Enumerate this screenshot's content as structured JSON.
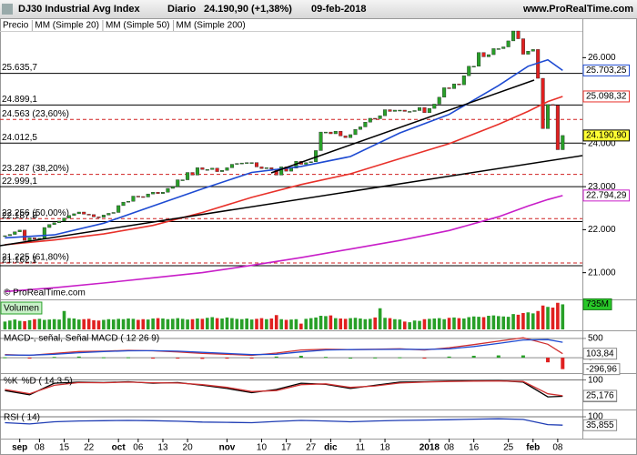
{
  "header": {
    "title": "DJ30 Industrial Avg Index",
    "period": "Diario",
    "last": "24.190,90 (+1,38%)",
    "date": "09-feb-2018",
    "site": "www.ProRealTime.com"
  },
  "chart_data": [
    {
      "type": "candlestick",
      "name": "Precio",
      "watermark": "© ProRealTime.com",
      "up_color": "#28a028",
      "down_color": "#e02020",
      "close": [
        21860,
        21890,
        21950,
        21990,
        21750,
        21810,
        21780,
        21800,
        22050,
        22120,
        22160,
        22200,
        22270,
        22330,
        22370,
        22410,
        22360,
        22350,
        22300,
        22290,
        22340,
        22380,
        22400,
        22560,
        22640,
        22660,
        22780,
        22770,
        22760,
        22830,
        22870,
        22840,
        22870,
        22960,
        23000,
        23160,
        23160,
        23330,
        23270,
        23440,
        23400,
        23400,
        23430,
        23350,
        23380,
        23440,
        23520,
        23540,
        23550,
        23560,
        23560,
        23460,
        23420,
        23440,
        23410,
        23270,
        23460,
        23360,
        23430,
        23590,
        23520,
        23560,
        23580,
        23840,
        24270,
        24270,
        24230,
        24290,
        24180,
        24140,
        24210,
        24330,
        24390,
        24500,
        24590,
        24580,
        24650,
        24790,
        24750,
        24780,
        24780,
        24750,
        24750,
        24770,
        24840,
        24720,
        24820,
        24920,
        25080,
        25300,
        25280,
        25390,
        25370,
        25580,
        25800,
        25800,
        26120,
        26020,
        26070,
        26210,
        26210,
        26250,
        26390,
        26620,
        26440,
        26080,
        26150,
        26190,
        25520,
        24350,
        24910,
        24890,
        23860,
        24190
      ],
      "close_last_label": "24.190,90",
      "xlim": [
        -1,
        117
      ],
      "xticks": [
        {
          "value": 3,
          "label": "sep"
        },
        {
          "value": 7,
          "label": "08"
        },
        {
          "value": 12,
          "label": "15"
        },
        {
          "value": 17,
          "label": "22"
        },
        {
          "value": 23,
          "label": "oct"
        },
        {
          "value": 27,
          "label": "06"
        },
        {
          "value": 32,
          "label": "13"
        },
        {
          "value": 37,
          "label": "20"
        },
        {
          "value": 45,
          "label": "nov"
        },
        {
          "value": 52,
          "label": "10"
        },
        {
          "value": 57,
          "label": "17"
        },
        {
          "value": 62,
          "label": "27"
        },
        {
          "value": 66,
          "label": "dic"
        },
        {
          "value": 72,
          "label": "11"
        },
        {
          "value": 77,
          "label": "18"
        },
        {
          "value": 86,
          "label": "2018"
        },
        {
          "value": 90,
          "label": "08"
        },
        {
          "value": 95,
          "label": "16"
        },
        {
          "value": 102,
          "label": "25"
        },
        {
          "value": 107,
          "label": "feb"
        },
        {
          "value": 112,
          "label": "08"
        }
      ],
      "ylim": [
        20400,
        26600
      ],
      "yticks": [
        {
          "value": 21000,
          "label": "21.000"
        },
        {
          "value": 22000,
          "label": "22.000"
        },
        {
          "value": 23000,
          "label": "23.000"
        },
        {
          "value": 24000,
          "label": "24.000"
        },
        {
          "value": 26000,
          "label": "26.000"
        }
      ],
      "series": [
        {
          "name": "MM (Simple 20)",
          "color": "#1e4bd2",
          "x": [
            0,
            10,
            20,
            30,
            40,
            50,
            60,
            70,
            80,
            90,
            100,
            106,
            110,
            113
          ],
          "values": [
            21810,
            21880,
            22150,
            22550,
            22950,
            23330,
            23470,
            23700,
            24250,
            24680,
            25350,
            25800,
            25950,
            25703.25
          ],
          "last_label": "25.703,25"
        },
        {
          "name": "MM (Simple 50)",
          "color": "#e8312a",
          "x": [
            0,
            10,
            20,
            30,
            40,
            50,
            60,
            70,
            80,
            90,
            100,
            106,
            110,
            113
          ],
          "values": [
            21650,
            21760,
            21900,
            22100,
            22400,
            22750,
            23050,
            23300,
            23650,
            24000,
            24450,
            24750,
            24980,
            25098.32
          ],
          "last_label": "25.098,32"
        },
        {
          "name": "MM (Simple 200)",
          "color": "#c81ec8",
          "x": [
            0,
            10,
            20,
            30,
            40,
            50,
            60,
            70,
            80,
            90,
            100,
            106,
            110,
            113
          ],
          "values": [
            20560,
            20650,
            20760,
            20880,
            21000,
            21170,
            21350,
            21550,
            21750,
            21980,
            22300,
            22550,
            22700,
            22794.29
          ],
          "last_label": "22.794,29"
        }
      ],
      "levels": [
        {
          "value": 25635.7,
          "label": "25.635,7",
          "color": "#000000",
          "dashed": false
        },
        {
          "value": 24899.1,
          "label": "24.899,1",
          "color": "#000000",
          "dashed": false
        },
        {
          "value": 24563,
          "label": "24.563 (23,60%)",
          "color": "#d02020",
          "dashed": true
        },
        {
          "value": 24012.5,
          "label": "24.012,5",
          "color": "#000000",
          "dashed": false
        },
        {
          "value": 23287,
          "label": "23.287 (38,20%)",
          "color": "#d02020",
          "dashed": true
        },
        {
          "value": 22999.1,
          "label": "22.999,1",
          "color": "#000000",
          "dashed": false
        },
        {
          "value": 22256,
          "label": "22.256 (50,00%)",
          "color": "#d02020",
          "dashed": true
        },
        {
          "value": 22187.8,
          "label": "22.187,8",
          "color": "#000000",
          "dashed": false
        },
        {
          "value": 21225,
          "label": "21.225 (61,80%)",
          "color": "#d02020",
          "dashed": true
        },
        {
          "value": 21162.1,
          "label": "21.162,1",
          "color": "#000000",
          "dashed": false
        }
      ]
    },
    {
      "type": "volume",
      "title": "Volumen",
      "ylim": [
        0,
        800
      ],
      "values": [
        230,
        260,
        290,
        250,
        240,
        270,
        300,
        310,
        280,
        290,
        300,
        290,
        540,
        330,
        320,
        290,
        300,
        310,
        270,
        260,
        280,
        300,
        290,
        310,
        300,
        320,
        310,
        280,
        300,
        290,
        320,
        330,
        320,
        300,
        310,
        330,
        310,
        290,
        300,
        320,
        310,
        340,
        360,
        330,
        320,
        350,
        330,
        310,
        300,
        320,
        290,
        310,
        330,
        300,
        320,
        420,
        300,
        280,
        290,
        300,
        170,
        310,
        330,
        350,
        400,
        390,
        410,
        330,
        320,
        310,
        330,
        340,
        320,
        300,
        310,
        350,
        620,
        340,
        330,
        300,
        290,
        230,
        210,
        260,
        250,
        300,
        310,
        320,
        330,
        300,
        340,
        350,
        330,
        320,
        360,
        380,
        370,
        360,
        400,
        410,
        390,
        380,
        370,
        450,
        430,
        480,
        500,
        470,
        540,
        700,
        660,
        640,
        780,
        735
      ],
      "last_label": "735M"
    },
    {
      "type": "line",
      "title": "MACD-, señal, Señal MACD ( 12 26 9)",
      "ylim": [
        -400,
        640
      ],
      "yticks": [
        0,
        500
      ],
      "x": [
        0,
        5,
        10,
        15,
        20,
        25,
        30,
        35,
        40,
        45,
        50,
        55,
        60,
        65,
        70,
        75,
        80,
        85,
        90,
        95,
        100,
        105,
        110,
        113
      ],
      "series": [
        {
          "kind": "bar",
          "color": "#28a028",
          "down_color": "#e02020",
          "values": [
            10,
            -5,
            20,
            30,
            10,
            10,
            -2,
            -20,
            -30,
            -20,
            -20,
            30,
            50,
            20,
            0,
            5,
            10,
            -15,
            30,
            50,
            60,
            60,
            -120,
            -296.96
          ],
          "last_label": "-296,96"
        },
        {
          "kind": "line",
          "color": "#d03030",
          "values": [
            80,
            60,
            110,
            160,
            170,
            190,
            180,
            150,
            110,
            90,
            60,
            120,
            200,
            220,
            210,
            220,
            230,
            200,
            260,
            340,
            430,
            520,
            350,
            103.84
          ],
          "last_label": "103,84"
        },
        {
          "kind": "line",
          "color": "#1e4bd2",
          "values": [
            70,
            65,
            90,
            130,
            160,
            180,
            182,
            170,
            140,
            110,
            80,
            90,
            150,
            200,
            210,
            215,
            220,
            215,
            230,
            290,
            370,
            460,
            470,
            400.8
          ]
        }
      ]
    },
    {
      "type": "line",
      "ylim": [
        -40,
        120
      ],
      "yticks": [
        100
      ],
      "x": [
        0,
        5,
        10,
        15,
        20,
        25,
        30,
        35,
        40,
        45,
        50,
        55,
        60,
        65,
        70,
        75,
        80,
        85,
        90,
        95,
        100,
        105,
        110,
        113
      ],
      "series": [
        {
          "kind": "line",
          "name": "%K",
          "color": "#000000",
          "values": [
            50,
            30,
            85,
            90,
            88,
            92,
            85,
            88,
            75,
            60,
            40,
            55,
            85,
            80,
            60,
            75,
            90,
            92,
            95,
            96,
            97,
            90,
            20,
            22.554
          ],
          "last_label": "22,554"
        },
        {
          "kind": "line",
          "name": "%D ( 14 3 5)",
          "color": "#d03030",
          "values": [
            55,
            35,
            75,
            88,
            87,
            90,
            87,
            86,
            78,
            65,
            45,
            50,
            78,
            82,
            65,
            72,
            86,
            90,
            93,
            95,
            96,
            93,
            35,
            25.176
          ],
          "last_label": "25,176"
        }
      ]
    },
    {
      "type": "line",
      "title": "RSI ( 14)",
      "ylim": [
        -60,
        135
      ],
      "yticks": [
        100
      ],
      "x": [
        0,
        5,
        10,
        15,
        20,
        25,
        30,
        35,
        40,
        45,
        50,
        55,
        60,
        65,
        70,
        75,
        80,
        85,
        90,
        95,
        100,
        105,
        110,
        113
      ],
      "series": [
        {
          "kind": "line",
          "color": "#1e3cb4",
          "values": [
            55,
            45,
            62,
            68,
            70,
            72,
            70,
            66,
            60,
            58,
            55,
            65,
            72,
            68,
            62,
            68,
            72,
            75,
            78,
            82,
            85,
            80,
            40,
            35.855
          ],
          "last_label": "35,855"
        }
      ]
    }
  ]
}
